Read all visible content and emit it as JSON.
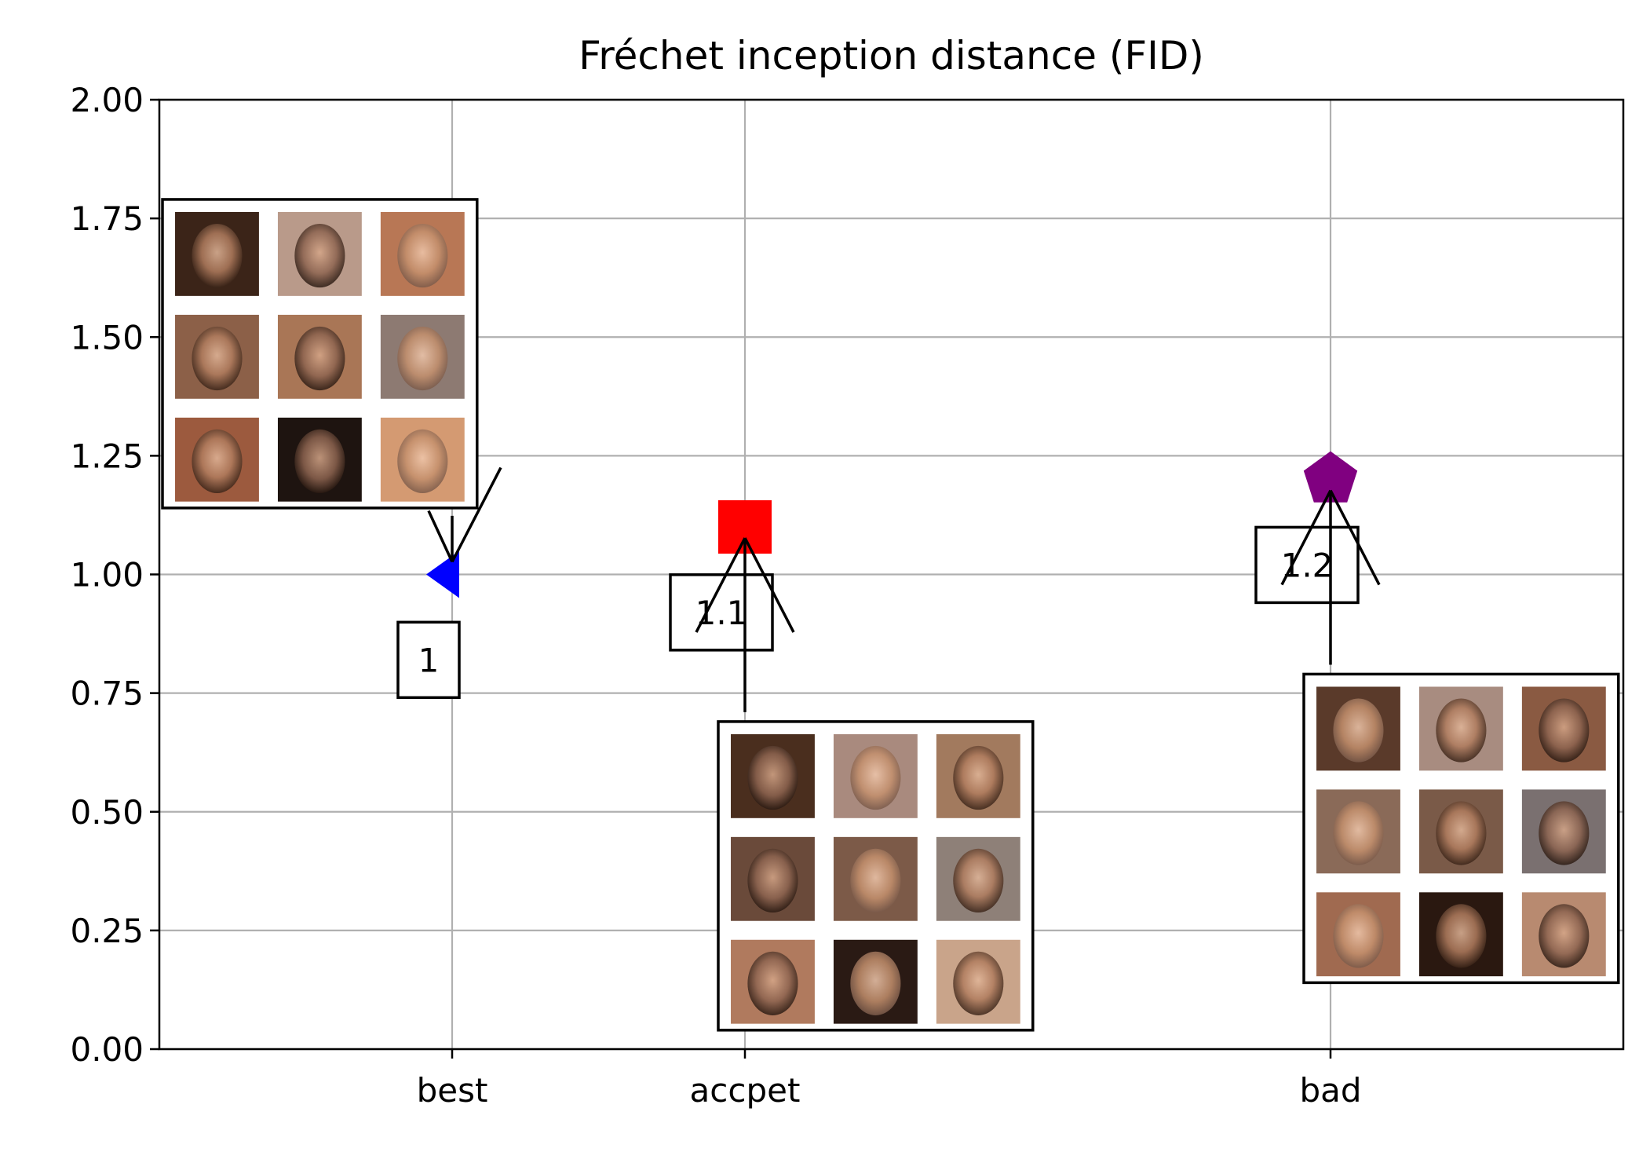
{
  "chart_data": {
    "type": "scatter",
    "title": "Fréchet inception distance (FID)",
    "xlabel": "",
    "ylabel": "",
    "categories": [
      "best",
      "accpet",
      "bad"
    ],
    "x": [
      1.0,
      2.0,
      4.0
    ],
    "xlim": [
      0.0,
      5.0
    ],
    "ylim": [
      0.0,
      2.0
    ],
    "yticks": [
      0.0,
      0.25,
      0.5,
      0.75,
      1.0,
      1.25,
      1.5,
      1.75,
      2.0
    ],
    "ytick_labels": [
      "0.00",
      "0.25",
      "0.50",
      "0.75",
      "1.00",
      "1.25",
      "1.50",
      "1.75",
      "2.00"
    ],
    "grid": true,
    "points": [
      {
        "category": "best",
        "value": 1.0,
        "marker": "triangle-left",
        "color": "#0000ff",
        "label": "1",
        "label_y": 0.82,
        "inset_y": [
          1.14,
          1.79
        ],
        "inset_side": "left"
      },
      {
        "category": "accpet",
        "value": 1.1,
        "marker": "square",
        "color": "#ff0000",
        "label": "1.1",
        "label_y": 0.92,
        "inset_y": [
          0.04,
          0.69
        ],
        "inset_side": "right"
      },
      {
        "category": "bad",
        "value": 1.2,
        "marker": "pentagon",
        "color": "#800080",
        "label": "1.2",
        "label_y": 1.02,
        "inset_y": [
          0.14,
          0.79
        ],
        "inset_side": "right"
      }
    ]
  }
}
